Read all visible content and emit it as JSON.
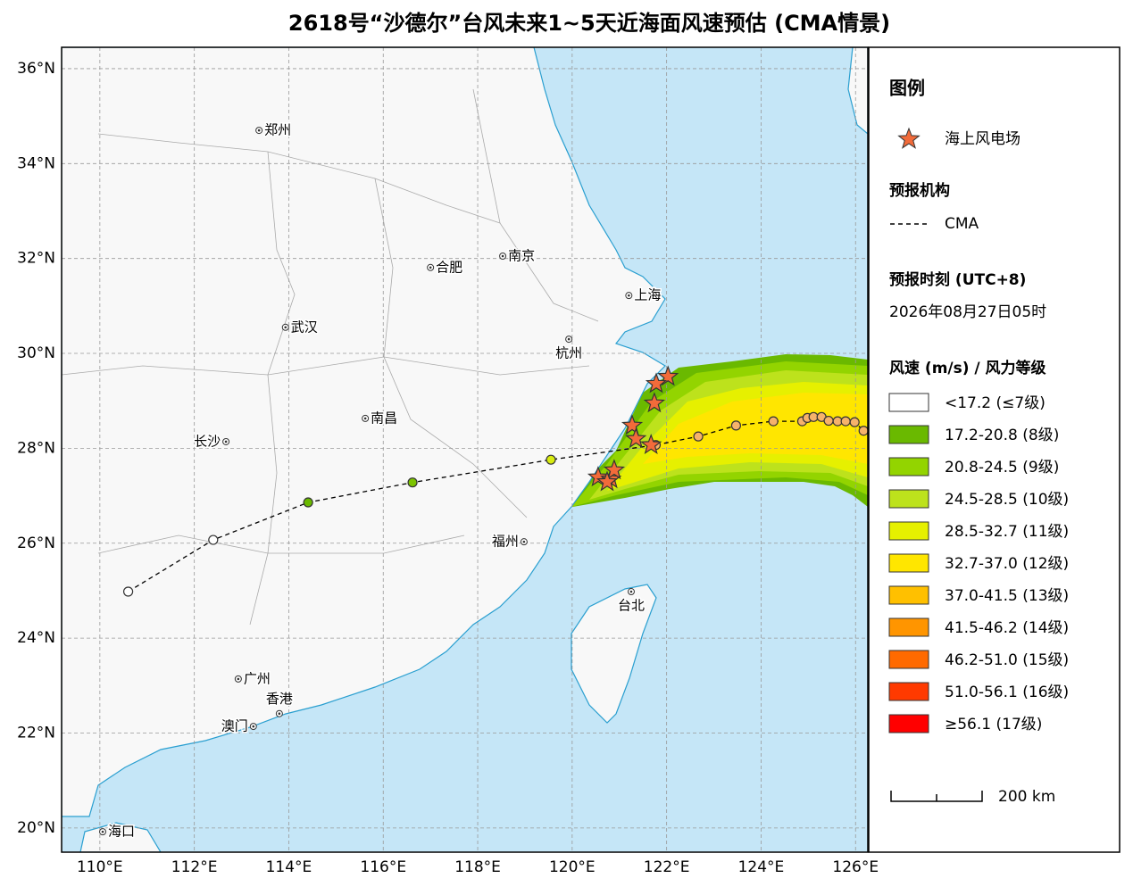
{
  "title": "2618号“沙德尔”台风未来1~5天近海面风速预估 (CMA情景)",
  "map": {
    "xlim": [
      109.19,
      126.26
    ],
    "ylim": [
      19.49,
      36.45
    ],
    "grid": true,
    "xticks": [
      {
        "value": 110,
        "label": "110°E"
      },
      {
        "value": 112,
        "label": "112°E"
      },
      {
        "value": 114,
        "label": "114°E"
      },
      {
        "value": 116,
        "label": "116°E"
      },
      {
        "value": 118,
        "label": "118°E"
      },
      {
        "value": 120,
        "label": "120°E"
      },
      {
        "value": 122,
        "label": "122°E"
      },
      {
        "value": 124,
        "label": "124°E"
      },
      {
        "value": 126,
        "label": "126°E"
      }
    ],
    "yticks": [
      {
        "value": 20,
        "label": "20°N"
      },
      {
        "value": 22,
        "label": "22°N"
      },
      {
        "value": 24,
        "label": "24°N"
      },
      {
        "value": 26,
        "label": "26°N"
      },
      {
        "value": 28,
        "label": "28°N"
      },
      {
        "value": 30,
        "label": "30°N"
      },
      {
        "value": 32,
        "label": "32°N"
      },
      {
        "value": 34,
        "label": "34°N"
      },
      {
        "value": 36,
        "label": "36°N"
      }
    ],
    "cities": [
      {
        "name": "郑州",
        "lon": 113.37,
        "lat": 34.7
      },
      {
        "name": "合肥",
        "lon": 117.0,
        "lat": 31.81
      },
      {
        "name": "南京",
        "lon": 118.53,
        "lat": 32.05
      },
      {
        "name": "上海",
        "lon": 121.2,
        "lat": 31.22
      },
      {
        "name": "武汉",
        "lon": 113.93,
        "lat": 30.55
      },
      {
        "name": "杭州",
        "lon": 119.93,
        "lat": 30.3
      },
      {
        "name": "南昌",
        "lon": 115.62,
        "lat": 28.63
      },
      {
        "name": "长沙",
        "lon": 112.67,
        "lat": 28.14
      },
      {
        "name": "福州",
        "lon": 118.98,
        "lat": 26.03
      },
      {
        "name": "台北",
        "lon": 121.25,
        "lat": 24.98
      },
      {
        "name": "广州",
        "lon": 112.93,
        "lat": 23.14
      },
      {
        "name": "香港",
        "lon": 113.8,
        "lat": 22.41
      },
      {
        "name": "澳门",
        "lon": 113.25,
        "lat": 22.14
      },
      {
        "name": "海口",
        "lon": 110.06,
        "lat": 19.92
      }
    ],
    "track": {
      "lon": [
        110.6,
        112.4,
        114.41,
        116.62,
        119.55,
        121.77,
        122.67,
        123.47,
        124.26,
        124.87,
        124.98,
        125.11,
        125.28,
        125.43,
        125.62,
        125.79,
        125.98,
        126.17
      ],
      "lat": [
        24.98,
        26.07,
        26.86,
        27.28,
        27.76,
        28.07,
        28.25,
        28.48,
        28.57,
        28.57,
        28.64,
        28.66,
        28.66,
        28.58,
        28.57,
        28.57,
        28.55,
        28.37
      ],
      "colors": [
        "#ffffff",
        "#ffffff",
        "#6ab900",
        "#7cc400",
        "#d8ec10",
        "#f6b26b",
        "#f6b26b",
        "#f6b26b",
        "#f6b26b",
        "#f6b26b",
        "#f6b26b",
        "#f6b26b",
        "#f6b26b",
        "#f6b26b",
        "#f6b26b",
        "#f6b26b",
        "#f6b26b",
        "#f6b26b"
      ]
    },
    "wind_farms": {
      "lon": [
        122.03,
        121.78,
        121.74,
        121.27,
        121.35,
        121.67,
        120.55,
        120.82,
        120.89,
        120.74
      ],
      "lat": [
        29.51,
        29.36,
        28.95,
        28.48,
        28.2,
        28.07,
        27.39,
        27.35,
        27.54,
        27.29
      ]
    }
  },
  "legend": {
    "title": "图例",
    "wind_farm": "海上风电场",
    "agency_title": "预报机构",
    "agency": "CMA",
    "time_title": "预报时刻 (UTC+8)",
    "time": "2026年08月27日05时",
    "wind_title": "风速 (m/s) / 风力等级",
    "wind_levels": [
      {
        "label": "<17.2 (≤7级)",
        "color": "#ffffff"
      },
      {
        "label": "17.2-20.8 (8级)",
        "color": "#6ab900"
      },
      {
        "label": "20.8-24.5 (9级)",
        "color": "#93d400"
      },
      {
        "label": "24.5-28.5 (10级)",
        "color": "#bde21c"
      },
      {
        "label": "28.5-32.7 (11级)",
        "color": "#e6f000"
      },
      {
        "label": "32.7-37.0 (12级)",
        "color": "#ffe600"
      },
      {
        "label": "37.0-41.5 (13级)",
        "color": "#ffc000"
      },
      {
        "label": "41.5-46.2 (14级)",
        "color": "#ff9500"
      },
      {
        "label": "46.2-51.0 (15级)",
        "color": "#ff6a00"
      },
      {
        "label": "51.0-56.1 (16级)",
        "color": "#ff3a00"
      },
      {
        "label": "≥56.1 (17级)",
        "color": "#ff0000"
      }
    ],
    "scale": "200 km"
  }
}
